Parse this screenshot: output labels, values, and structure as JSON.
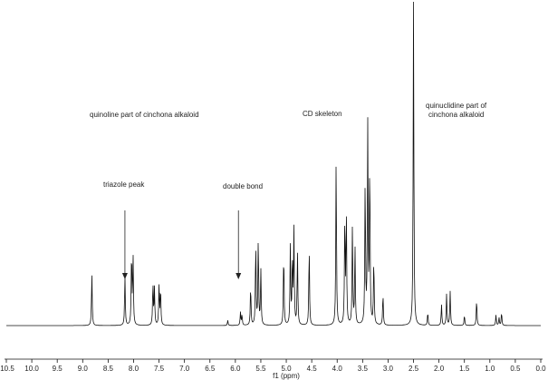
{
  "chart_data": {
    "type": "line",
    "title": "",
    "xlabel": "f1 (ppm)",
    "ylabel": "",
    "xlim": [
      10.5,
      0.0
    ],
    "x_reversed": true,
    "grid": false,
    "x_ticks": [
      "10.5",
      "10.0",
      "9.5",
      "9.0",
      "8.5",
      "8.0",
      "7.5",
      "7.0",
      "6.5",
      "6.0",
      "5.5",
      "5.0",
      "4.5",
      "4.0",
      "3.5",
      "3.0",
      "2.5",
      "2.0",
      "1.5",
      "1.0",
      "0.5",
      "0.0"
    ],
    "series": [
      {
        "peaks": [
          {
            "x": 8.82,
            "y": 0.2
          },
          {
            "x": 8.17,
            "y": 0.19
          },
          {
            "x": 8.04,
            "y": 0.28
          },
          {
            "x": 8.01,
            "y": 0.26
          },
          {
            "x": 7.62,
            "y": 0.16
          },
          {
            "x": 7.59,
            "y": 0.14
          },
          {
            "x": 7.5,
            "y": 0.15
          },
          {
            "x": 7.47,
            "y": 0.14
          },
          {
            "x": 6.15,
            "y": 0.02
          },
          {
            "x": 5.9,
            "y": 0.05
          },
          {
            "x": 5.87,
            "y": 0.04
          },
          {
            "x": 5.7,
            "y": 0.15
          },
          {
            "x": 5.6,
            "y": 0.31
          },
          {
            "x": 5.55,
            "y": 0.33
          },
          {
            "x": 5.5,
            "y": 0.21
          },
          {
            "x": 5.05,
            "y": 0.28
          },
          {
            "x": 4.92,
            "y": 0.3
          },
          {
            "x": 4.88,
            "y": 0.25
          },
          {
            "x": 4.85,
            "y": 0.36
          },
          {
            "x": 4.78,
            "y": 0.28
          },
          {
            "x": 4.55,
            "y": 0.3
          },
          {
            "x": 4.02,
            "y": 0.64
          },
          {
            "x": 3.85,
            "y": 0.4
          },
          {
            "x": 3.82,
            "y": 0.43
          },
          {
            "x": 3.7,
            "y": 0.38
          },
          {
            "x": 3.65,
            "y": 0.3
          },
          {
            "x": 3.45,
            "y": 0.55
          },
          {
            "x": 3.4,
            "y": 0.76
          },
          {
            "x": 3.36,
            "y": 0.62
          },
          {
            "x": 3.28,
            "y": 0.25
          },
          {
            "x": 3.1,
            "y": 0.12
          },
          {
            "x": 2.5,
            "y": 1.25
          },
          {
            "x": 2.22,
            "y": 0.05
          },
          {
            "x": 1.95,
            "y": 0.08
          },
          {
            "x": 1.85,
            "y": 0.12
          },
          {
            "x": 1.78,
            "y": 0.13
          },
          {
            "x": 1.5,
            "y": 0.04
          },
          {
            "x": 1.26,
            "y": 0.1
          },
          {
            "x": 0.88,
            "y": 0.04
          },
          {
            "x": 0.82,
            "y": 0.03
          },
          {
            "x": 0.77,
            "y": 0.05
          }
        ]
      }
    ],
    "annotations": [
      {
        "text": "quinoline part of cinchona alkaloid"
      },
      {
        "text": "triazole peak",
        "arrow_to_ppm": 8.17
      },
      {
        "text": "double bond",
        "arrow_to_ppm": 5.94
      },
      {
        "text": "CD skeleton"
      },
      {
        "text": "quinuclidine part of"
      },
      {
        "text": "cinchona alkaloid"
      }
    ]
  }
}
